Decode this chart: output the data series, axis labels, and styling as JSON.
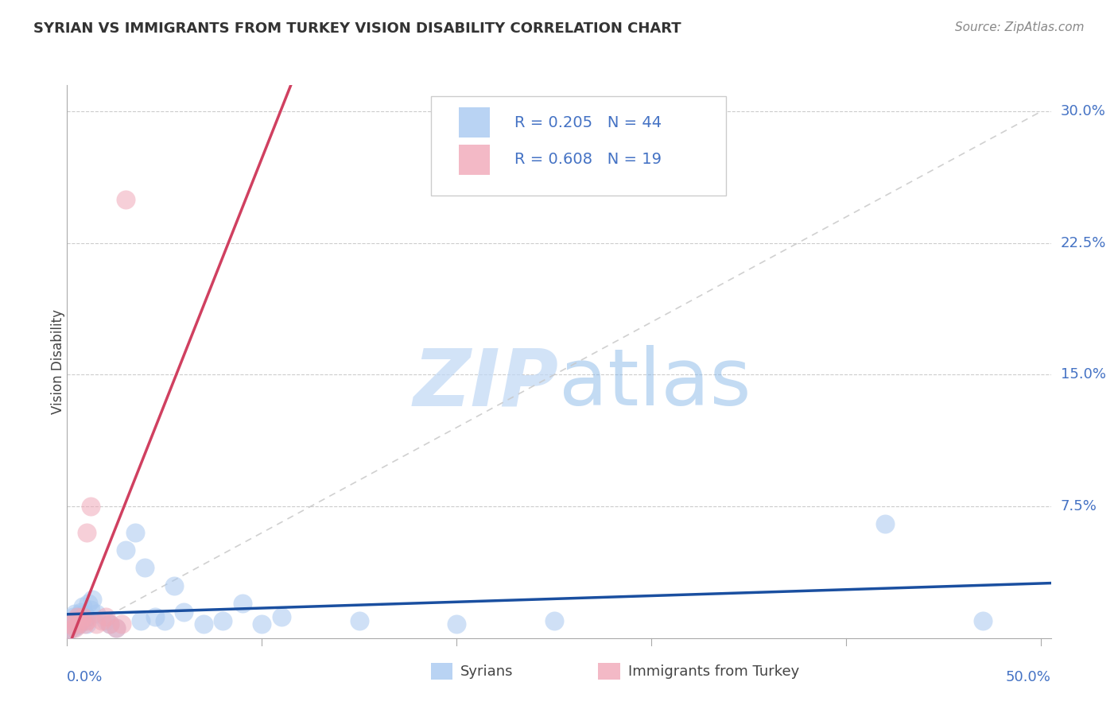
{
  "title": "SYRIAN VS IMMIGRANTS FROM TURKEY VISION DISABILITY CORRELATION CHART",
  "source": "Source: ZipAtlas.com",
  "ylabel": "Vision Disability",
  "blue_color": "#A8C8F0",
  "pink_color": "#F0A8B8",
  "trendline_blue": "#1A4FA0",
  "trendline_pink": "#D04060",
  "trendline_dashed_color": "#C8C8C8",
  "background_color": "#FFFFFF",
  "grid_color": "#CCCCCC",
  "tick_label_color": "#4472C4",
  "legend_text_color": "#4472C4",
  "watermark_color": "#C8DEFA",
  "xlim": [
    0.0,
    0.505
  ],
  "ylim": [
    0.0,
    0.315
  ],
  "ytick_vals": [
    0.075,
    0.15,
    0.225,
    0.3
  ],
  "ytick_labels": [
    "7.5%",
    "15.0%",
    "22.5%",
    "30.0%"
  ],
  "syrians_x": [
    0.001,
    0.002,
    0.002,
    0.003,
    0.003,
    0.004,
    0.004,
    0.005,
    0.005,
    0.006,
    0.006,
    0.007,
    0.007,
    0.008,
    0.008,
    0.009,
    0.009,
    0.01,
    0.01,
    0.011,
    0.012,
    0.013,
    0.015,
    0.02,
    0.022,
    0.025,
    0.03,
    0.035,
    0.038,
    0.04,
    0.045,
    0.05,
    0.055,
    0.06,
    0.07,
    0.08,
    0.09,
    0.1,
    0.11,
    0.15,
    0.2,
    0.25,
    0.42,
    0.47
  ],
  "syrians_y": [
    0.005,
    0.008,
    0.01,
    0.006,
    0.012,
    0.009,
    0.014,
    0.007,
    0.011,
    0.008,
    0.013,
    0.01,
    0.015,
    0.012,
    0.018,
    0.01,
    0.014,
    0.008,
    0.012,
    0.02,
    0.016,
    0.022,
    0.014,
    0.01,
    0.008,
    0.006,
    0.05,
    0.06,
    0.01,
    0.04,
    0.012,
    0.01,
    0.03,
    0.015,
    0.008,
    0.01,
    0.02,
    0.008,
    0.012,
    0.01,
    0.008,
    0.01,
    0.065,
    0.01
  ],
  "turkey_x": [
    0.001,
    0.002,
    0.003,
    0.004,
    0.005,
    0.006,
    0.007,
    0.008,
    0.009,
    0.01,
    0.01,
    0.012,
    0.015,
    0.018,
    0.02,
    0.022,
    0.025,
    0.028,
    0.03
  ],
  "turkey_y": [
    0.005,
    0.008,
    0.01,
    0.006,
    0.012,
    0.008,
    0.01,
    0.012,
    0.008,
    0.01,
    0.06,
    0.075,
    0.008,
    0.01,
    0.012,
    0.008,
    0.006,
    0.008,
    0.25
  ]
}
